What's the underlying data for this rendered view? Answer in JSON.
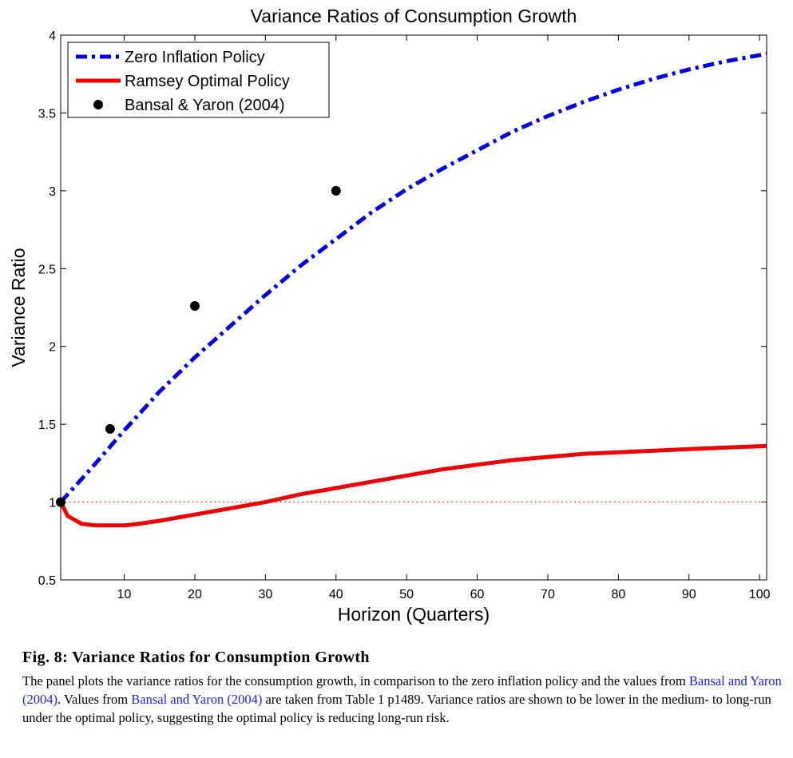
{
  "chart_data": {
    "type": "line",
    "title": "Variance Ratios of Consumption Growth",
    "xlabel": "Horizon (Quarters)",
    "ylabel": "Variance Ratio",
    "xlim": [
      1,
      101
    ],
    "ylim": [
      0.5,
      4
    ],
    "xticks": [
      10,
      20,
      30,
      40,
      50,
      60,
      70,
      80,
      90,
      100
    ],
    "yticks": [
      0.5,
      1,
      1.5,
      2,
      2.5,
      3,
      3.5,
      4
    ],
    "grid": false,
    "legend_position": "top-left",
    "reference_line": {
      "y": 1,
      "style": "dotted",
      "color": "#e01010"
    },
    "series": [
      {
        "name": "Zero Inflation Policy",
        "style": "dash-dot",
        "color": "#0000e6",
        "x": [
          1,
          5,
          10,
          15,
          20,
          25,
          30,
          35,
          40,
          45,
          50,
          55,
          60,
          65,
          70,
          75,
          80,
          85,
          90,
          95,
          101
        ],
        "y": [
          1.0,
          1.2,
          1.46,
          1.71,
          1.93,
          2.13,
          2.33,
          2.52,
          2.69,
          2.86,
          3.01,
          3.14,
          3.26,
          3.38,
          3.48,
          3.57,
          3.65,
          3.72,
          3.78,
          3.83,
          3.88
        ]
      },
      {
        "name": "Ramsey Optimal Policy",
        "style": "solid",
        "color": "#f00000",
        "x": [
          1,
          2,
          4,
          6,
          8,
          10,
          12,
          15,
          20,
          25,
          30,
          35,
          40,
          45,
          50,
          55,
          60,
          65,
          70,
          75,
          80,
          85,
          90,
          95,
          101
        ],
        "y": [
          1.0,
          0.91,
          0.86,
          0.85,
          0.85,
          0.85,
          0.86,
          0.88,
          0.92,
          0.96,
          1.0,
          1.05,
          1.09,
          1.13,
          1.17,
          1.21,
          1.24,
          1.27,
          1.29,
          1.31,
          1.32,
          1.33,
          1.34,
          1.35,
          1.36
        ]
      },
      {
        "name": "Bansal & Yaron (2004)",
        "style": "markers",
        "color": "#000000",
        "x": [
          1,
          8,
          20,
          40
        ],
        "y": [
          1.0,
          1.47,
          2.26,
          3.0
        ]
      }
    ]
  },
  "caption": {
    "title": "Fig. 8: Variance Ratios for Consumption Growth",
    "text_1": "The panel plots the variance ratios for the consumption growth, in comparison to the zero inflation policy and the values from ",
    "cite_1": "Bansal and Yaron (2004)",
    "text_2": ". Values from ",
    "cite_2": "Bansal and Yaron (2004)",
    "text_3": " are taken from Table 1 p1489. Variance ratios are shown to be lower in the medium- to long-run under the optimal policy, suggesting the optimal policy is reducing long-run risk."
  }
}
